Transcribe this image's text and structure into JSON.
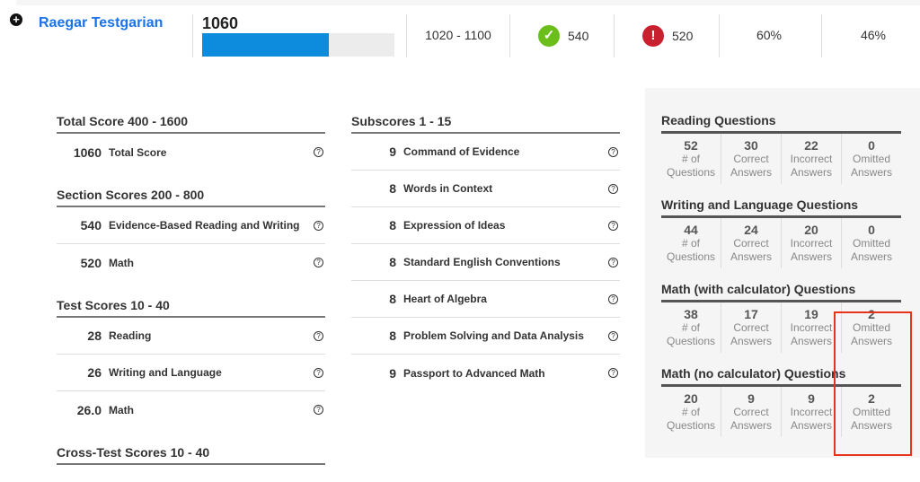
{
  "student": {
    "name": "Raegar Testgarian",
    "total": "1060",
    "bar_fraction": 0.66,
    "range": "1020 - 1100",
    "ebrw": "540",
    "math": "520",
    "pct1": "60%",
    "pct2": "46%",
    "bar_color": "#0d8bdc"
  },
  "icons": {
    "expand": "plus-circle-icon",
    "ok": "check-circle-icon",
    "err": "exclamation-circle-icon",
    "help": "question-circle-icon"
  },
  "left": [
    {
      "heading": "Total Score 400 - 1600",
      "rows": [
        {
          "v": "1060",
          "l": "Total Score"
        }
      ]
    },
    {
      "heading": "Section Scores 200 - 800",
      "rows": [
        {
          "v": "540",
          "l": "Evidence-Based Reading and Writing"
        },
        {
          "v": "520",
          "l": "Math"
        }
      ]
    },
    {
      "heading": "Test Scores 10 - 40",
      "rows": [
        {
          "v": "28",
          "l": "Reading"
        },
        {
          "v": "26",
          "l": "Writing and Language"
        },
        {
          "v": "26.0",
          "l": "Math"
        }
      ]
    },
    {
      "heading": "Cross-Test Scores 10 - 40",
      "rows": []
    }
  ],
  "middle": {
    "heading": "Subscores 1 - 15",
    "rows": [
      {
        "v": "9",
        "l": "Command of Evidence"
      },
      {
        "v": "8",
        "l": "Words in Context"
      },
      {
        "v": "8",
        "l": "Expression of Ideas"
      },
      {
        "v": "8",
        "l": "Standard English Conventions"
      },
      {
        "v": "8",
        "l": "Heart of Algebra"
      },
      {
        "v": "8",
        "l": "Problem Solving and Data Analysis"
      },
      {
        "v": "9",
        "l": "Passport to Advanced Math"
      }
    ]
  },
  "labels": {
    "a1": "# of",
    "a2": "Questions",
    "b1": "Correct",
    "b2": "Answers",
    "c1": "Incorrect",
    "c2": "Answers",
    "d1": "Omitted",
    "d2": "Answers"
  },
  "questions": [
    {
      "heading": "Reading Questions",
      "vals": [
        "52",
        "30",
        "22",
        "0"
      ]
    },
    {
      "heading": "Writing and Language Questions",
      "vals": [
        "44",
        "24",
        "20",
        "0"
      ]
    },
    {
      "heading": "Math (with calculator) Questions",
      "vals": [
        "38",
        "17",
        "19",
        "2"
      ]
    },
    {
      "heading": "Math (no calculator) Questions",
      "vals": [
        "20",
        "9",
        "9",
        "2"
      ]
    }
  ]
}
